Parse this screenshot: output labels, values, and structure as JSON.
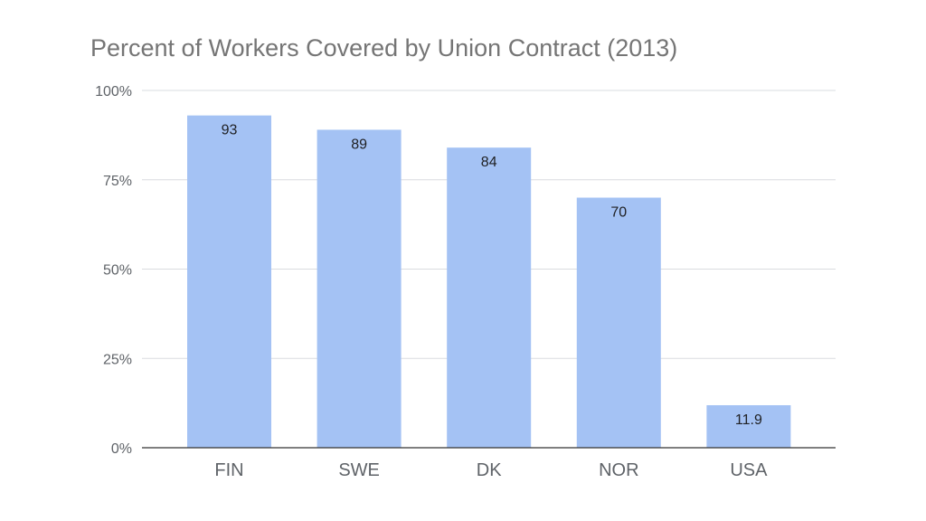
{
  "chart_data": {
    "type": "bar",
    "title": "Percent of Workers Covered by Union Contract (2013)",
    "categories": [
      "FIN",
      "SWE",
      "DK",
      "NOR",
      "USA"
    ],
    "values": [
      93,
      89,
      84,
      70,
      11.9
    ],
    "data_labels": [
      "93",
      "89",
      "84",
      "70",
      "11.9"
    ],
    "y_ticks": [
      0,
      25,
      50,
      75,
      100
    ],
    "y_tick_labels": [
      "0%",
      "25%",
      "50%",
      "75%",
      "100%"
    ],
    "ylim": [
      0,
      100
    ],
    "xlabel": "",
    "ylabel": "",
    "grid": true,
    "bar_color": "#a4c2f4",
    "grid_color": "#dadce0",
    "axis_color": "#333333"
  }
}
